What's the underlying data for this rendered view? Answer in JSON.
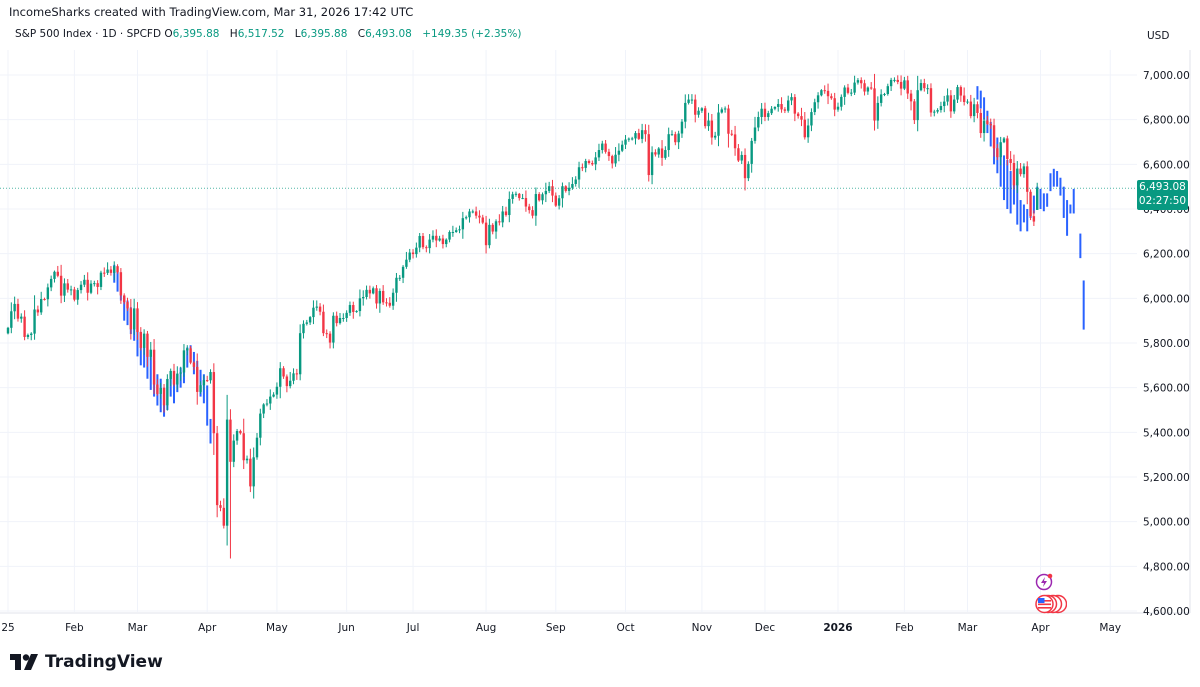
{
  "credit": "IncomeSharks created with TradingView.com, Mar 31, 2026 17:42 UTC",
  "legend": {
    "symbol": "S&P 500 Index · 1D · SPCFD",
    "open_label": "O",
    "open": "6,395.88",
    "high_label": "H",
    "high": "6,517.52",
    "low_label": "L",
    "low": "6,395.88",
    "close_label": "C",
    "close": "6,493.08",
    "change": "+149.35 (+2.35%)"
  },
  "currency": "USD",
  "last_price": {
    "price": "6,493.08",
    "countdown": "02:27:50",
    "value": 6493.08
  },
  "brand": {
    "name": "TradingView"
  },
  "events": [
    {
      "icon": "lightning-icon",
      "color": "#9C27B0"
    },
    {
      "icon": "us-flag-icon",
      "color": "#F23645"
    }
  ],
  "colors": {
    "up": "#089981",
    "down": "#F23645",
    "pattern": "#2962FF",
    "grid": "#F0F3FA",
    "price_line": "#089981"
  },
  "chart_data": {
    "type": "candlestick",
    "title": "S&P 500 Index",
    "interval": "1D",
    "ylim": [
      4600,
      7000
    ],
    "yticks": [
      "4,600.00",
      "4,800.00",
      "5,000.00",
      "5,200.00",
      "5,400.00",
      "5,600.00",
      "5,800.00",
      "6,000.00",
      "6,200.00",
      "6,400.00",
      "6,600.00",
      "6,800.00",
      "7,000.00"
    ],
    "ytick_values": [
      4600,
      4800,
      5000,
      5200,
      5400,
      5600,
      5800,
      6000,
      6200,
      6400,
      6600,
      6800,
      7000
    ],
    "grid": true,
    "months": [
      {
        "label": "25",
        "month": "2025-01",
        "closes": [
          5868,
          5942,
          5975,
          5909,
          5918,
          5827,
          5836,
          5842,
          5950,
          5937,
          5997,
          5996,
          6049,
          6087,
          6119,
          6101,
          6012,
          6067,
          6039,
          6040
        ]
      },
      {
        "label": "Feb",
        "month": "2025-02",
        "closes": [
          5994,
          6037,
          6061,
          6083,
          6025,
          6066,
          6068,
          6051,
          6115,
          6114,
          6129,
          6114,
          6144,
          6117,
          6013,
          5983,
          5955,
          5861,
          5955
        ]
      },
      {
        "label": "Mar",
        "month": "2025-03",
        "closes": [
          5849,
          5778,
          5842,
          5738,
          5770,
          5614,
          5572,
          5599,
          5521,
          5639,
          5675,
          5614,
          5663,
          5668,
          5767,
          5776,
          5712,
          5693,
          5581,
          5611,
          5634
        ]
      },
      {
        "label": "Apr",
        "month": "2025-04",
        "closes": [
          5633,
          5670,
          5396,
          5074,
          5062,
          4982,
          5457,
          5268,
          5363,
          5406,
          5396,
          5275,
          5282,
          5158,
          5288,
          5376,
          5484,
          5525,
          5529,
          5560,
          5569
        ]
      },
      {
        "label": "May",
        "month": "2025-05",
        "closes": [
          5604,
          5687,
          5650,
          5607,
          5631,
          5664,
          5660,
          5844,
          5886,
          5892,
          5916,
          5958,
          5963,
          5940,
          5844,
          5842,
          5802,
          5922,
          5889,
          5912,
          5912
        ]
      },
      {
        "label": "Jun",
        "month": "2025-06",
        "closes": [
          5935,
          5970,
          5939,
          5943,
          6000,
          6006,
          6038,
          6022,
          6045,
          5977,
          6033,
          5982,
          5980,
          5967,
          6025,
          6092,
          6092,
          6141,
          6173,
          6205
        ]
      },
      {
        "label": "Jul",
        "month": "2025-07",
        "closes": [
          6198,
          6227,
          6279,
          6229,
          6225,
          6263,
          6280,
          6259,
          6268,
          6243,
          6263,
          6297,
          6297,
          6305,
          6309,
          6359,
          6363,
          6389,
          6389,
          6370,
          6362,
          6339
        ]
      },
      {
        "label": "Aug",
        "month": "2025-08",
        "closes": [
          6238,
          6329,
          6299,
          6345,
          6340,
          6389,
          6373,
          6445,
          6466,
          6468,
          6449,
          6449,
          6411,
          6395,
          6370,
          6467,
          6439,
          6466,
          6481,
          6502,
          6460
        ]
      },
      {
        "label": "Sep",
        "month": "2025-09",
        "closes": [
          6415,
          6448,
          6502,
          6481,
          6495,
          6512,
          6532,
          6587,
          6584,
          6615,
          6606,
          6600,
          6631,
          6664,
          6693,
          6656,
          6637,
          6604,
          6643,
          6661,
          6688
        ]
      },
      {
        "label": "Oct",
        "month": "2025-10",
        "closes": [
          6711,
          6715,
          6716,
          6740,
          6714,
          6753,
          6735,
          6552,
          6654,
          6644,
          6671,
          6629,
          6664,
          6735,
          6735,
          6699,
          6738,
          6791,
          6875,
          6890,
          6890,
          6822,
          6840
        ]
      },
      {
        "label": "Nov",
        "month": "2025-11",
        "closes": [
          6851,
          6771,
          6796,
          6720,
          6728,
          6832,
          6846,
          6850,
          6737,
          6734,
          6672,
          6617,
          6642,
          6538,
          6602,
          6705,
          6765,
          6812,
          6849
        ]
      },
      {
        "label": "Dec",
        "month": "2025-12",
        "closes": [
          6812,
          6829,
          6849,
          6857,
          6870,
          6846,
          6840,
          6886,
          6901,
          6827,
          6816,
          6800,
          6721,
          6774,
          6834,
          6878,
          6909,
          6932,
          6929,
          6905,
          6896,
          6845
        ]
      },
      {
        "label": "2026",
        "month": "2026-01",
        "closes": [
          6858,
          6902,
          6944,
          6920,
          6921,
          6966,
          6977,
          6963,
          6926,
          6944,
          6940,
          6796,
          6875,
          6913,
          6915,
          6950,
          6978,
          6978,
          6969,
          6939
        ]
      },
      {
        "label": "Feb",
        "month": "2026-02",
        "closes": [
          6976,
          6917,
          6882,
          6798,
          6932,
          6964,
          6941,
          6941,
          6832,
          6836,
          6843,
          6861,
          6881,
          6909,
          6837,
          6890,
          6946,
          6908,
          6879
        ]
      },
      {
        "label": "Mar",
        "month": "2026-03",
        "closes": [
          6881,
          6816,
          6869,
          6830,
          6740,
          6796,
          6781,
          6775,
          6672,
          6632,
          6699,
          6716,
          6624,
          6606,
          6506,
          6581,
          6556,
          6591,
          6477,
          6368,
          6343.73,
          6493.08
        ]
      },
      {
        "label": "Apr",
        "month": "2026-04",
        "closes": []
      },
      {
        "label": "May",
        "month": "2026-05",
        "closes": []
      }
    ],
    "last_bar": {
      "open": 6395.88,
      "high": 6517.52,
      "low": 6395.88,
      "close": 6493.08
    },
    "bar_patterns": [
      {
        "start_date": "2025-02-19",
        "bars": [
          [
            6150,
            6070
          ],
          [
            6120,
            6030
          ],
          [
            6080,
            5990
          ],
          [
            6010,
            5900
          ],
          [
            5990,
            5880
          ],
          [
            5960,
            5840
          ],
          [
            5930,
            5810
          ],
          [
            5900,
            5740
          ],
          [
            5850,
            5700
          ],
          [
            5830,
            5690
          ],
          [
            5800,
            5640
          ],
          [
            5760,
            5590
          ],
          [
            5720,
            5560
          ],
          [
            5660,
            5520
          ],
          [
            5640,
            5490
          ],
          [
            5600,
            5470
          ],
          [
            5620,
            5500
          ],
          [
            5660,
            5560
          ],
          [
            5640,
            5530
          ],
          [
            5650,
            5580
          ],
          [
            5690,
            5600
          ],
          [
            5700,
            5620
          ],
          [
            5780,
            5690
          ],
          [
            5790,
            5730
          ],
          [
            5760,
            5660
          ],
          [
            5720,
            5620
          ],
          [
            5680,
            5560
          ],
          [
            5660,
            5530
          ],
          [
            5610,
            5430
          ],
          [
            5460,
            5350
          ]
        ]
      },
      {
        "start_date": "2026-03-05",
        "bars": [
          [
            6950,
            6890
          ],
          [
            6930,
            6850
          ],
          [
            6900,
            6800
          ],
          [
            6840,
            6740
          ],
          [
            6790,
            6680
          ],
          [
            6760,
            6600
          ],
          [
            6720,
            6560
          ],
          [
            6680,
            6500
          ],
          [
            6640,
            6440
          ],
          [
            6620,
            6400
          ],
          [
            6570,
            6380
          ],
          [
            6560,
            6420
          ],
          [
            6520,
            6330
          ],
          [
            6440,
            6300
          ],
          [
            6420,
            6340
          ],
          [
            6400,
            6300
          ],
          [
            6430,
            6360
          ],
          [
            6460,
            6380
          ],
          [
            6500,
            6420
          ],
          [
            6490,
            6400
          ],
          [
            6470,
            6390
          ],
          [
            6470,
            6410
          ],
          [
            6560,
            6480
          ],
          [
            6580,
            6500
          ],
          [
            6570,
            6500
          ],
          [
            6540,
            6460
          ],
          [
            6500,
            6360
          ],
          [
            6440,
            6280
          ],
          [
            6420,
            6380
          ],
          [
            6490,
            6380
          ],
          null,
          [
            6290,
            6180
          ],
          [
            6080,
            5860
          ]
        ]
      }
    ]
  }
}
